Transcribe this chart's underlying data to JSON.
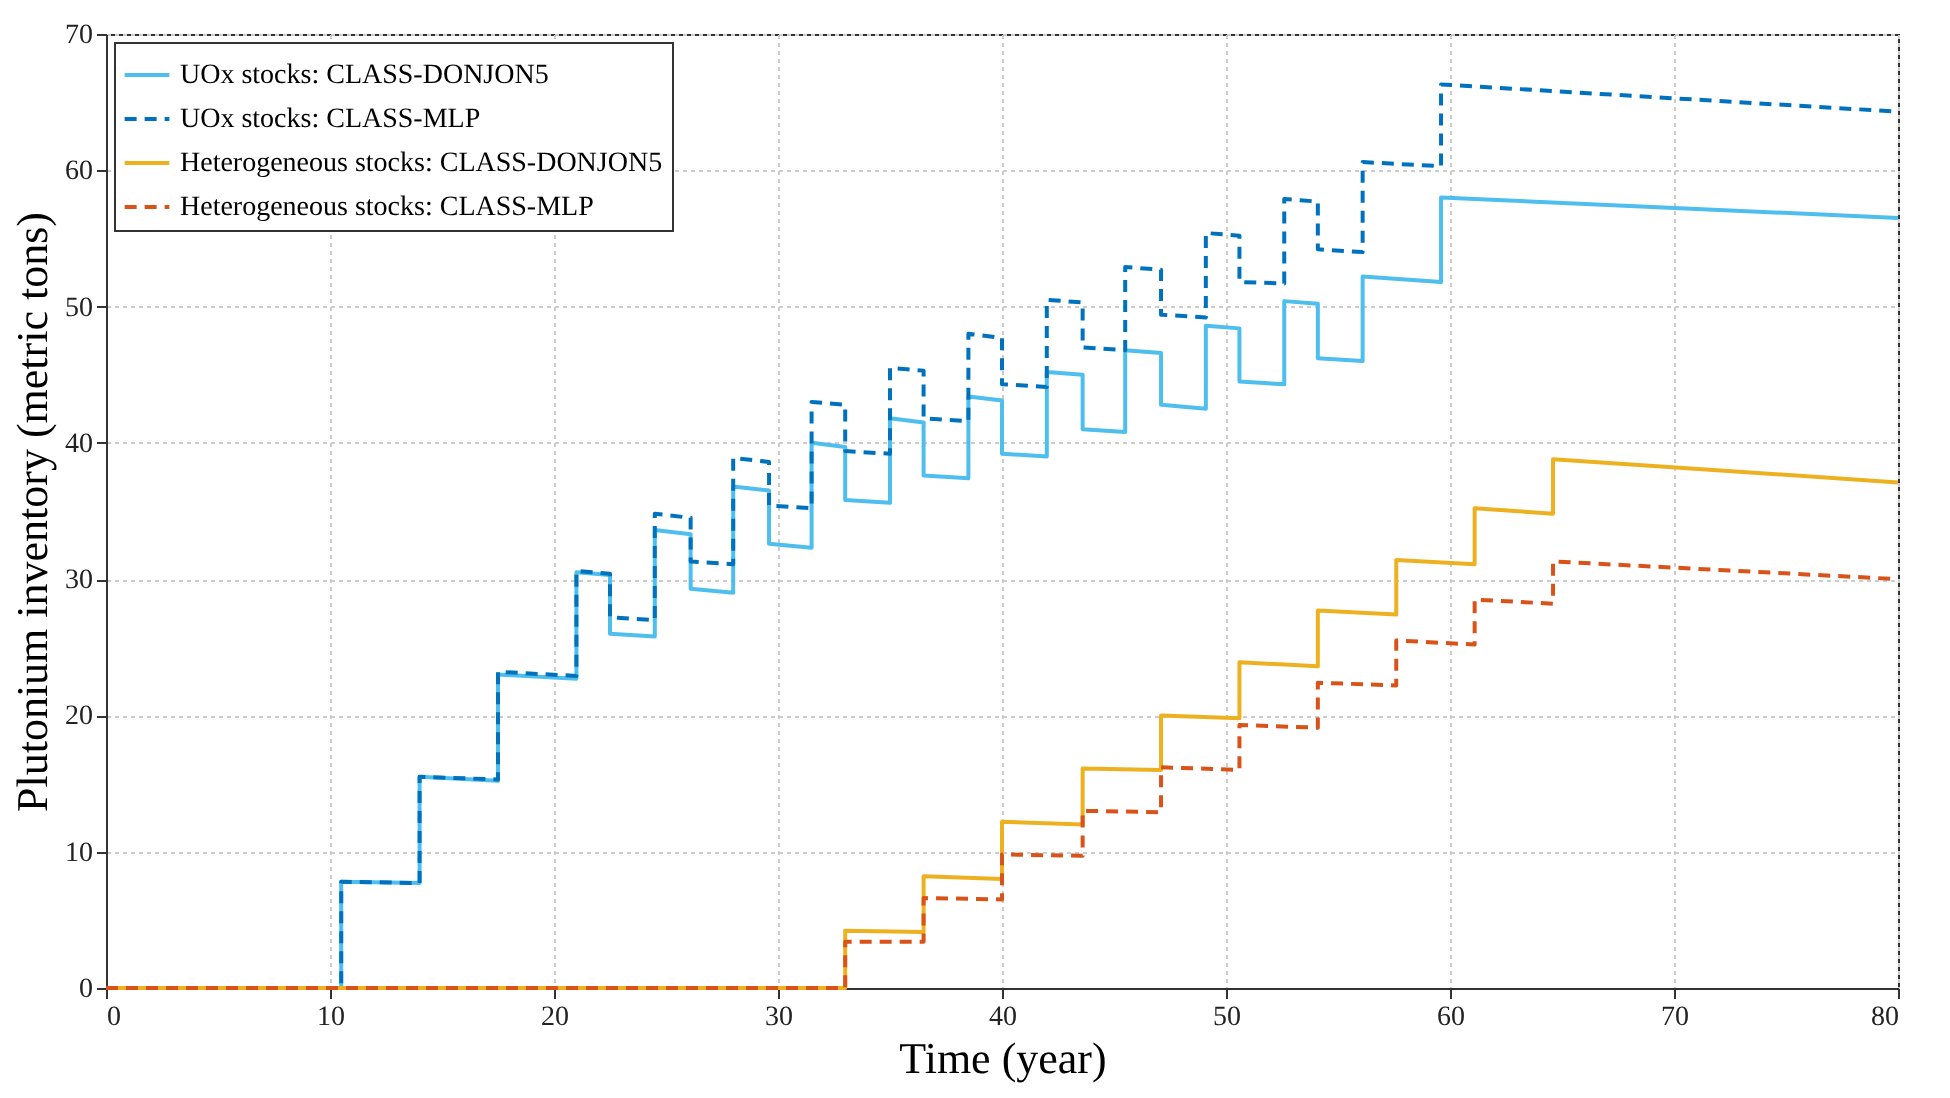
{
  "chart_data": {
    "type": "line",
    "xlabel": "Time (year)",
    "ylabel": "Plutonium inventory (metric tons)",
    "xlim": [
      0,
      80
    ],
    "xticks": [
      0,
      10,
      20,
      30,
      40,
      50,
      60,
      70,
      80
    ],
    "ylim": [
      0,
      70
    ],
    "yticks": [
      0,
      10,
      20,
      30,
      40,
      50,
      60,
      70
    ],
    "grid": true,
    "legend": "top left",
    "marker": "none",
    "series": [
      {
        "name": "UOx stocks: CLASS-DONJON5",
        "color": "#4dbeee",
        "line_style": "solid",
        "x": [
          0,
          10.5,
          10.5,
          14.0,
          14.0,
          17.5,
          17.5,
          21.0,
          21.0,
          22.5,
          22.5,
          24.5,
          24.5,
          26.1,
          26.1,
          28.0,
          28.0,
          29.6,
          29.6,
          31.5,
          31.5,
          33.0,
          33.0,
          35.0,
          35.0,
          36.5,
          36.5,
          38.5,
          38.5,
          40.0,
          40.0,
          42.0,
          42.0,
          43.6,
          43.6,
          45.5,
          45.5,
          47.1,
          47.1,
          49.1,
          49.1,
          50.6,
          50.6,
          52.6,
          52.6,
          54.1,
          54.1,
          56.1,
          56.1,
          59.6,
          59.6,
          80
        ],
        "values": [
          0,
          0,
          7.8,
          7.7,
          15.5,
          15.2,
          23.0,
          22.7,
          30.5,
          30.3,
          26.0,
          25.8,
          33.6,
          33.3,
          29.3,
          29.0,
          36.8,
          36.5,
          32.6,
          32.3,
          40.0,
          39.7,
          35.8,
          35.6,
          41.8,
          41.5,
          37.6,
          37.4,
          43.4,
          43.1,
          39.2,
          39.0,
          45.2,
          45.0,
          41.0,
          40.8,
          46.8,
          46.6,
          42.8,
          42.5,
          48.6,
          48.4,
          44.5,
          44.3,
          50.4,
          50.2,
          46.2,
          46.0,
          52.2,
          51.8,
          58.0,
          56.5
        ]
      },
      {
        "name": "UOx stocks: CLASS-MLP",
        "color": "#0072bd",
        "line_style": "dashed",
        "x": [
          0,
          10.5,
          10.5,
          14.0,
          14.0,
          17.5,
          17.5,
          21.0,
          21.0,
          22.5,
          22.5,
          24.5,
          24.5,
          26.1,
          26.1,
          28.0,
          28.0,
          29.6,
          29.6,
          31.5,
          31.5,
          33.0,
          33.0,
          35.0,
          35.0,
          36.5,
          36.5,
          38.5,
          38.5,
          40.0,
          40.0,
          42.0,
          42.0,
          43.6,
          43.6,
          45.5,
          45.5,
          47.1,
          47.1,
          49.1,
          49.1,
          50.6,
          50.6,
          52.6,
          52.6,
          54.1,
          54.1,
          56.1,
          56.1,
          59.6,
          59.6,
          80
        ],
        "values": [
          0,
          0,
          7.8,
          7.7,
          15.5,
          15.3,
          23.2,
          22.9,
          30.6,
          30.4,
          27.2,
          27.0,
          34.8,
          34.5,
          31.3,
          31.1,
          38.9,
          38.6,
          35.4,
          35.2,
          43.0,
          42.8,
          39.4,
          39.2,
          45.5,
          45.3,
          41.8,
          41.6,
          48.0,
          47.7,
          44.3,
          44.1,
          50.5,
          50.3,
          47.0,
          46.8,
          52.9,
          52.7,
          49.4,
          49.2,
          55.4,
          55.2,
          51.8,
          51.7,
          57.9,
          57.7,
          54.2,
          54.0,
          60.6,
          60.3,
          66.3,
          64.3
        ]
      },
      {
        "name": "Heterogeneous stocks: CLASS-DONJON5",
        "color": "#edb120",
        "line_style": "solid",
        "x": [
          0,
          33.0,
          33.0,
          36.5,
          36.5,
          40.0,
          40.0,
          43.6,
          43.6,
          47.1,
          47.1,
          50.6,
          50.6,
          54.1,
          54.1,
          57.6,
          57.6,
          61.1,
          61.1,
          64.6,
          64.6,
          80
        ],
        "values": [
          0,
          0,
          4.2,
          4.1,
          8.2,
          8.0,
          12.2,
          12.0,
          16.1,
          16.0,
          20.0,
          19.8,
          23.9,
          23.6,
          27.7,
          27.4,
          31.4,
          31.1,
          35.2,
          34.8,
          38.8,
          37.1
        ]
      },
      {
        "name": "Heterogeneous stocks: CLASS-MLP",
        "color": "#d95319",
        "line_style": "dashed",
        "x": [
          0,
          33.0,
          33.0,
          36.5,
          36.5,
          40.0,
          40.0,
          43.6,
          43.6,
          47.1,
          47.1,
          50.6,
          50.6,
          54.1,
          54.1,
          57.6,
          57.6,
          61.1,
          61.1,
          64.6,
          64.6,
          80
        ],
        "values": [
          0,
          0,
          3.4,
          3.4,
          6.6,
          6.5,
          9.8,
          9.7,
          13.0,
          12.9,
          16.2,
          16.0,
          19.3,
          19.1,
          22.4,
          22.2,
          25.5,
          25.2,
          28.5,
          28.2,
          31.3,
          30.0
        ]
      }
    ]
  }
}
